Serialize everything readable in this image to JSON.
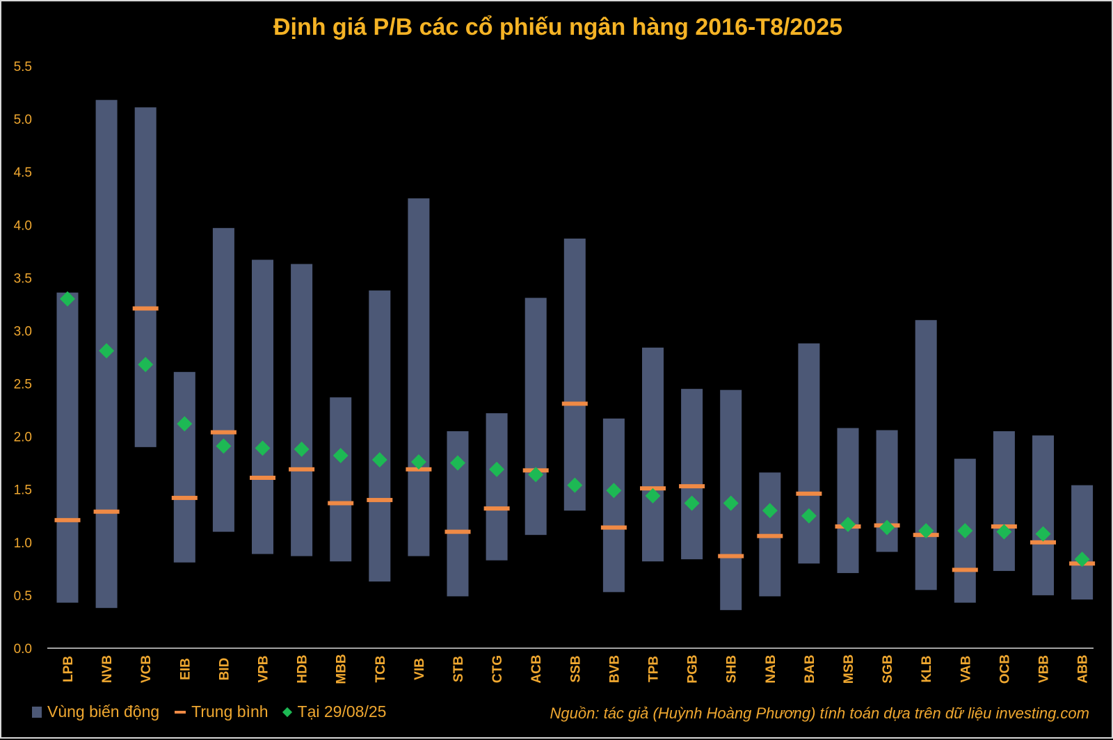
{
  "chart_data": {
    "type": "range",
    "title": "Định giá P/B các cổ phiếu ngân hàng 2016-T8/2025",
    "xlabel": "",
    "ylabel": "",
    "ylim": [
      0,
      5.5
    ],
    "yticks": [
      "0.0",
      "0.5",
      "1.0",
      "1.5",
      "2.0",
      "2.5",
      "3.0",
      "3.5",
      "4.0",
      "4.5",
      "5.0",
      "5.5"
    ],
    "grid": false,
    "legend_position": "bottom-left",
    "categories": [
      "LPB",
      "NVB",
      "VCB",
      "EIB",
      "BID",
      "VPB",
      "HDB",
      "MBB",
      "TCB",
      "VIB",
      "STB",
      "CTG",
      "ACB",
      "SSB",
      "BVB",
      "TPB",
      "PGB",
      "SHB",
      "NAB",
      "BAB",
      "MSB",
      "SGB",
      "KLB",
      "VAB",
      "OCB",
      "VBB",
      "ABB"
    ],
    "series": [
      {
        "name": "Vùng biến động",
        "kind": "range",
        "low": [
          0.43,
          0.38,
          1.9,
          0.81,
          1.1,
          0.89,
          0.87,
          0.82,
          0.63,
          0.87,
          0.49,
          0.83,
          1.07,
          1.3,
          0.53,
          0.82,
          0.84,
          0.36,
          0.49,
          0.8,
          0.71,
          0.91,
          0.55,
          0.43,
          0.73,
          0.5,
          0.46
        ],
        "high": [
          3.36,
          5.18,
          5.11,
          2.61,
          3.97,
          3.67,
          3.63,
          2.37,
          3.38,
          4.25,
          2.05,
          2.22,
          3.31,
          3.87,
          2.17,
          2.84,
          2.45,
          2.44,
          1.66,
          2.88,
          2.08,
          2.06,
          3.1,
          1.79,
          2.05,
          2.01,
          1.54
        ]
      },
      {
        "name": "Trung bình",
        "kind": "mean",
        "values": [
          1.21,
          1.29,
          3.21,
          1.42,
          2.04,
          1.61,
          1.69,
          1.37,
          1.4,
          1.69,
          1.1,
          1.32,
          1.68,
          2.31,
          1.14,
          1.51,
          1.53,
          0.87,
          1.06,
          1.46,
          1.15,
          1.16,
          1.07,
          0.74,
          1.15,
          1.0,
          0.8
        ]
      },
      {
        "name": "Tại 29/08/25",
        "kind": "point",
        "values": [
          3.3,
          2.81,
          2.68,
          2.12,
          1.91,
          1.89,
          1.88,
          1.82,
          1.78,
          1.76,
          1.75,
          1.69,
          1.64,
          1.54,
          1.49,
          1.44,
          1.37,
          1.37,
          1.3,
          1.25,
          1.17,
          1.14,
          1.11,
          1.11,
          1.1,
          1.08,
          0.84
        ]
      }
    ],
    "source_note": "Nguồn: tác giả (Huỳnh Hoàng Phương) tính toán dựa trên dữ liệu investing.com",
    "colors": {
      "background": "#000000",
      "range": "#4c5876",
      "mean": "#f08a45",
      "point": "#1db954",
      "text": "#f0a830",
      "title": "#f5b325",
      "axis": "#d9d9d9"
    }
  }
}
